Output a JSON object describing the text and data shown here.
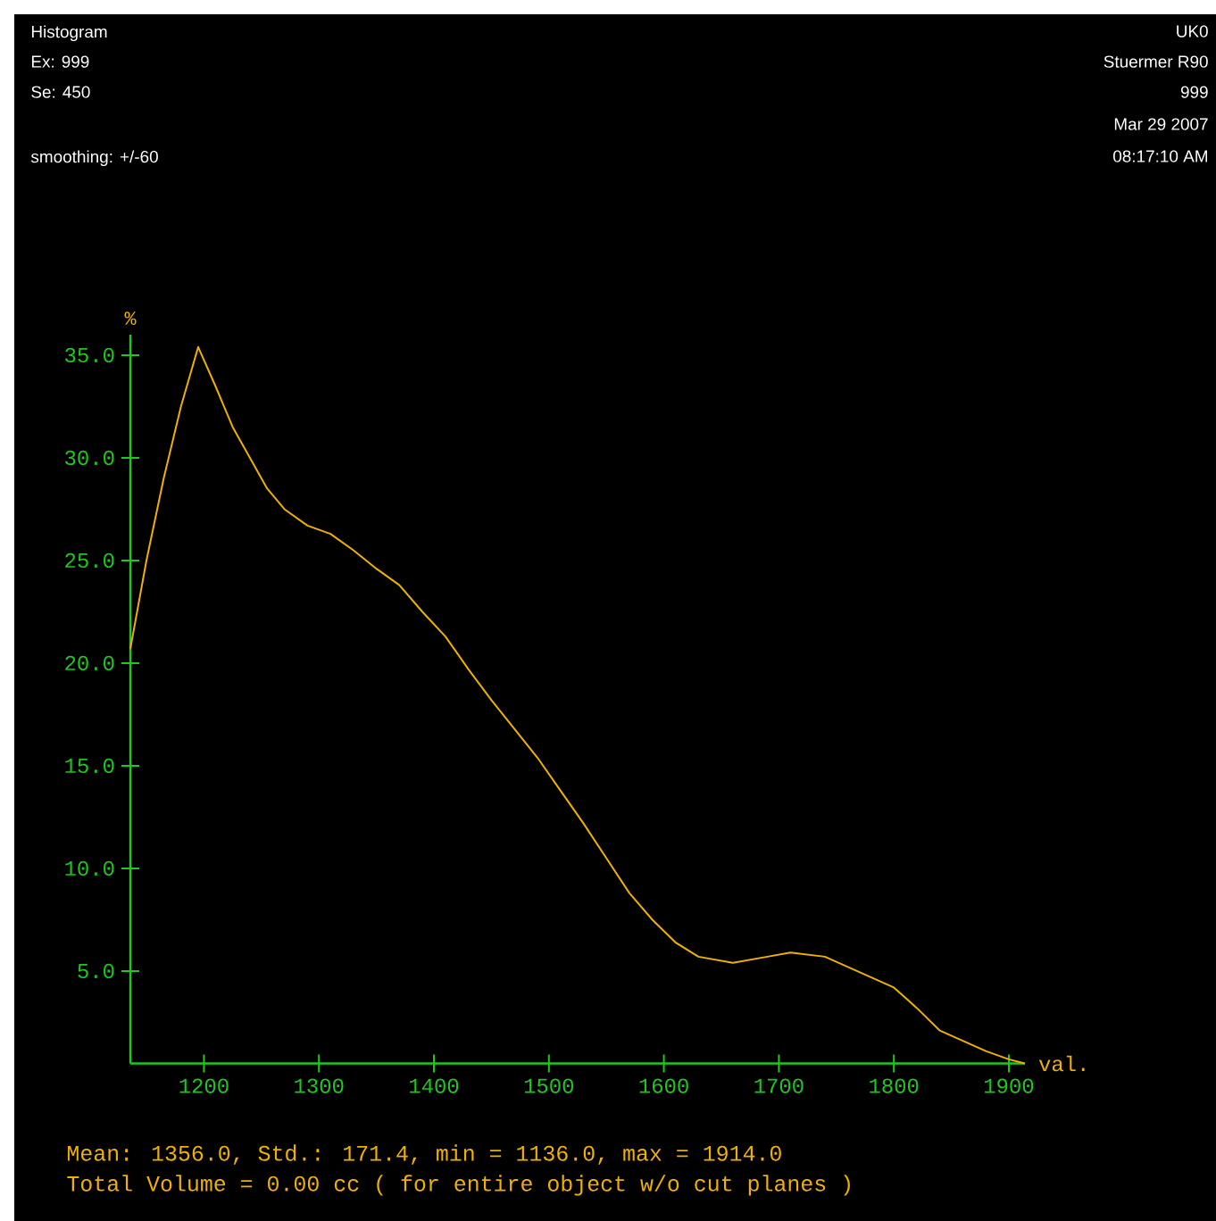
{
  "chart_data": {
    "type": "line",
    "title": "Histogram",
    "xlabel": "val.",
    "ylabel": "%",
    "annotations": [
      "Ex: 999",
      "Se: 450",
      "smoothing: +/-60",
      "UK0",
      "Stuermer R90",
      "999",
      "Mar 29 2007",
      "08:17:10 AM",
      "Mean: 1356.0, Std.: 171.4, min = 1136.0, max = 1914.0",
      "Total Volume = 0.00 cc ( for entire object w/o cut planes )"
    ],
    "x": [
      1136,
      1150,
      1165,
      1180,
      1195,
      1210,
      1225,
      1240,
      1255,
      1270,
      1290,
      1310,
      1330,
      1350,
      1370,
      1390,
      1410,
      1430,
      1450,
      1470,
      1490,
      1510,
      1530,
      1550,
      1570,
      1590,
      1610,
      1630,
      1660,
      1690,
      1710,
      1740,
      1760,
      1780,
      1800,
      1820,
      1840,
      1860,
      1880,
      1900,
      1914
    ],
    "series": [
      {
        "color": "#f0b000",
        "values": [
          20.7,
          25,
          29,
          32.5,
          35.4,
          33.5,
          31.5,
          30,
          28.5,
          27.5,
          26.7,
          26.3,
          25.5,
          24.6,
          23.8,
          22.5,
          21.3,
          19.7,
          18.2,
          16.8,
          15.4,
          13.8,
          12.2,
          10.5,
          8.8,
          7.5,
          6.4,
          5.7,
          5.4,
          5.7,
          5.9,
          5.7,
          5.2,
          4.7,
          4.2,
          3.2,
          2.1,
          1.6,
          1.1,
          0.7,
          0.5
        ]
      }
    ],
    "xlim": [
      1136,
      1914
    ],
    "ylim": [
      0.5,
      36
    ],
    "xticks": [
      1200,
      1300,
      1400,
      1500,
      1600,
      1700,
      1800,
      1900
    ],
    "yticks": [
      {
        "value": 5,
        "label": "5.0"
      },
      {
        "value": 10,
        "label": "10.0"
      },
      {
        "value": 15,
        "label": "15.0"
      },
      {
        "value": 20,
        "label": "20.0"
      },
      {
        "value": 25,
        "label": "25.0"
      },
      {
        "value": 30,
        "label": "30.0"
      },
      {
        "value": 35,
        "label": "35.0"
      }
    ],
    "grid": false,
    "marker": "none",
    "line_style": "solid"
  }
}
